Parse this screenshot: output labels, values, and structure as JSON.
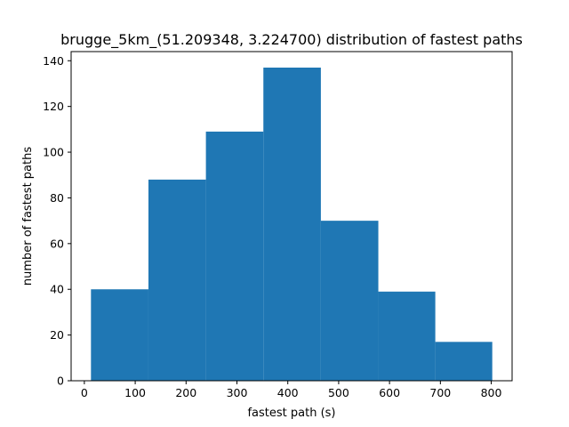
{
  "chart_data": {
    "type": "bar",
    "title": "brugge_5km_(51.209348, 3.224700) distribution of fastest paths",
    "xlabel": "fastest path (s)",
    "ylabel": "number of fastest paths",
    "bins": [
      {
        "x0": 13,
        "x1": 126,
        "count": 40
      },
      {
        "x0": 126,
        "x1": 239,
        "count": 88
      },
      {
        "x0": 239,
        "x1": 352,
        "count": 109
      },
      {
        "x0": 352,
        "x1": 465,
        "count": 137
      },
      {
        "x0": 465,
        "x1": 578,
        "count": 70
      },
      {
        "x0": 578,
        "x1": 690,
        "count": 39
      },
      {
        "x0": 690,
        "x1": 802,
        "count": 17
      }
    ],
    "xlim": [
      -26,
      841
    ],
    "ylim": [
      0,
      144
    ],
    "xticks": [
      0,
      100,
      200,
      300,
      400,
      500,
      600,
      700,
      800
    ],
    "xtick_labels": [
      "0",
      "100",
      "200",
      "300",
      "400",
      "500",
      "600",
      "700",
      "800"
    ],
    "yticks": [
      0,
      20,
      40,
      60,
      80,
      100,
      120,
      140
    ],
    "ytick_labels": [
      "0",
      "20",
      "40",
      "60",
      "80",
      "100",
      "120",
      "140"
    ],
    "bar_color": "#1f77b4",
    "grid": false,
    "legend": "none"
  }
}
